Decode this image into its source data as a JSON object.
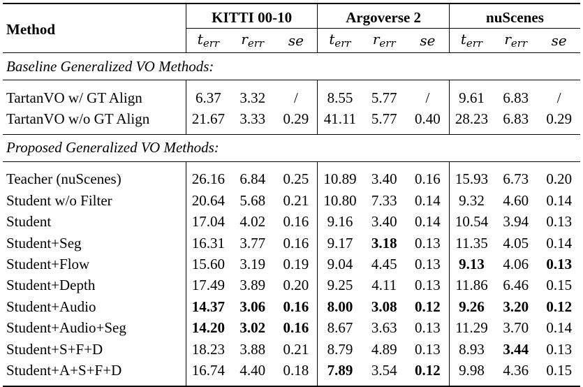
{
  "header": {
    "method": "Method",
    "groups": [
      "KITTI 00-10",
      "Argoverse 2",
      "nuScenes"
    ],
    "metrics": [
      {
        "base": "t",
        "sub": "err"
      },
      {
        "base": "r",
        "sub": "err"
      },
      {
        "base": "se",
        "sub": ""
      }
    ]
  },
  "sections": [
    {
      "title": "Baseline Generalized VO Methods:",
      "rows": [
        {
          "name": "TartanVO w/ GT Align",
          "values": [
            "6.37",
            "3.32",
            "/",
            "8.55",
            "5.77",
            "/",
            "9.61",
            "6.83",
            "/"
          ],
          "bold": []
        },
        {
          "name": "TartanVO w/o GT Align",
          "values": [
            "21.67",
            "3.33",
            "0.29",
            "41.11",
            "5.77",
            "0.40",
            "28.23",
            "6.83",
            "0.29"
          ],
          "bold": []
        }
      ]
    },
    {
      "title": "Proposed Generalized VO Methods:",
      "rows": [
        {
          "name": "Teacher (nuScenes)",
          "values": [
            "26.16",
            "6.84",
            "0.25",
            "10.89",
            "3.40",
            "0.16",
            "15.93",
            "6.73",
            "0.20"
          ],
          "bold": []
        },
        {
          "name": "Student w/o Filter",
          "values": [
            "20.64",
            "5.68",
            "0.21",
            "10.80",
            "7.33",
            "0.14",
            "9.32",
            "4.60",
            "0.14"
          ],
          "bold": []
        },
        {
          "name": "Student",
          "values": [
            "17.04",
            "4.02",
            "0.16",
            "9.16",
            "3.40",
            "0.14",
            "10.54",
            "3.94",
            "0.13"
          ],
          "bold": []
        },
        {
          "name": "Student+Seg",
          "values": [
            "16.31",
            "3.77",
            "0.16",
            "9.17",
            "3.18",
            "0.13",
            "11.35",
            "4.05",
            "0.14"
          ],
          "bold": [
            4
          ]
        },
        {
          "name": "Student+Flow",
          "values": [
            "15.60",
            "3.19",
            "0.19",
            "9.04",
            "4.45",
            "0.13",
            "9.13",
            "4.06",
            "0.13"
          ],
          "bold": [
            6,
            8
          ]
        },
        {
          "name": "Student+Depth",
          "values": [
            "17.49",
            "3.89",
            "0.20",
            "9.25",
            "4.11",
            "0.13",
            "11.86",
            "6.46",
            "0.15"
          ],
          "bold": []
        },
        {
          "name": "Student+Audio",
          "values": [
            "14.37",
            "3.06",
            "0.16",
            "8.00",
            "3.08",
            "0.12",
            "9.26",
            "3.20",
            "0.12"
          ],
          "bold": [
            0,
            1,
            2,
            3,
            4,
            5,
            6,
            7,
            8
          ]
        },
        {
          "name": "Student+Audio+Seg",
          "values": [
            "14.20",
            "3.02",
            "0.16",
            "8.67",
            "3.63",
            "0.13",
            "11.29",
            "3.70",
            "0.14"
          ],
          "bold": [
            0,
            1,
            2
          ]
        },
        {
          "name": "Student+S+F+D",
          "values": [
            "18.23",
            "3.88",
            "0.21",
            "8.79",
            "4.89",
            "0.13",
            "8.93",
            "3.44",
            "0.13"
          ],
          "bold": [
            7
          ]
        },
        {
          "name": "Student+A+S+F+D",
          "values": [
            "16.74",
            "4.40",
            "0.18",
            "7.89",
            "3.54",
            "0.12",
            "9.98",
            "4.36",
            "0.15"
          ],
          "bold": [
            3,
            5
          ]
        }
      ]
    }
  ]
}
